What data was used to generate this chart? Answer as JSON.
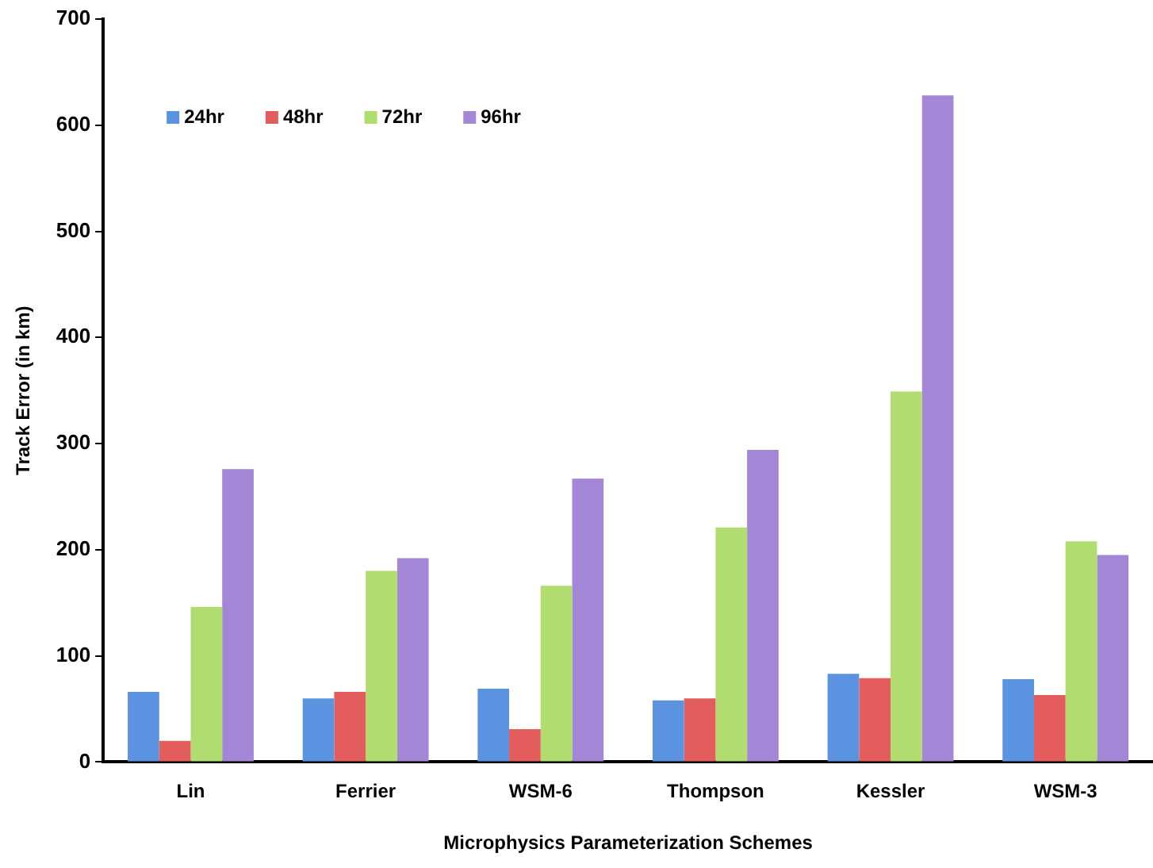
{
  "chart_data": {
    "type": "bar",
    "xlabel": "Microphysics Parameterization Schemes",
    "ylabel": "Track Error (in km)",
    "categories": [
      "Lin",
      "Ferrier",
      "WSM-6",
      "Thompson",
      "Kessler",
      "WSM-3"
    ],
    "series": [
      {
        "name": "24hr",
        "color": "#5b93e0",
        "values": [
          66,
          60,
          69,
          58,
          83,
          78
        ]
      },
      {
        "name": "48hr",
        "color": "#e35d5d",
        "values": [
          20,
          66,
          31,
          60,
          79,
          63
        ]
      },
      {
        "name": "72hr",
        "color": "#b0dc70",
        "values": [
          146,
          180,
          166,
          221,
          349,
          208
        ]
      },
      {
        "name": "96hr",
        "color": "#a486d6",
        "values": [
          276,
          192,
          267,
          294,
          628,
          195
        ]
      }
    ],
    "ylim": [
      0,
      700
    ],
    "yticks": [
      0,
      100,
      200,
      300,
      400,
      500,
      600,
      700
    ],
    "grid": false,
    "legend": "top left"
  }
}
